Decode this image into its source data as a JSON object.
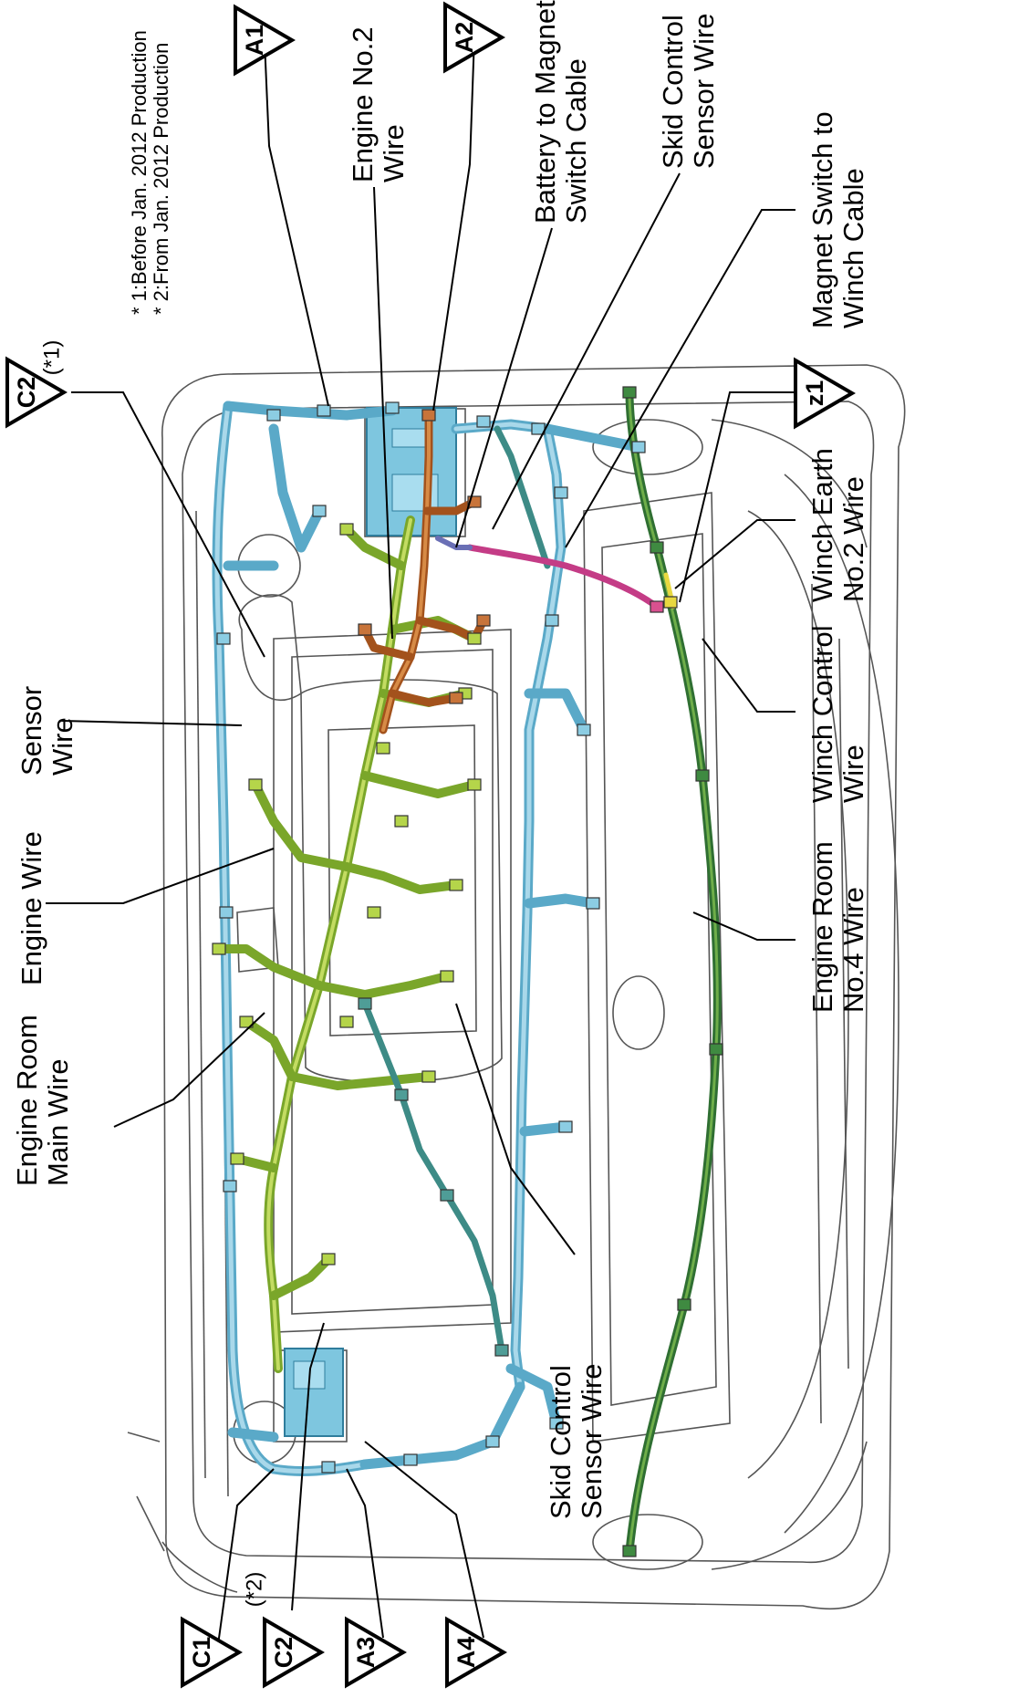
{
  "notes": {
    "line1": "* 1:Before Jan. 2012 Production",
    "line2": "* 2:From Jan. 2012 Production"
  },
  "markers": {
    "a1": "A1",
    "a2": "A2",
    "a3": "A3",
    "a4": "A4",
    "c1": "C1",
    "c2_top": "C2",
    "c2_bottom": "C2",
    "z1": "z1",
    "c2_top_note": "(*1)",
    "c2_bottom_note": "(*2)"
  },
  "labels": {
    "engine_no2_wire": [
      "Engine No.2",
      "Wire"
    ],
    "battery_to_magnet_switch_cable": [
      "Battery to Magnet",
      "Switch Cable"
    ],
    "skid_control_sensor_wire_top": [
      "Skid Control",
      "Sensor Wire"
    ],
    "magnet_switch_to_winch_cable": [
      "Magnet Switch to",
      "Winch Cable"
    ],
    "winch_earth_no2_wire": [
      "Winch Earth",
      "No.2 Wire"
    ],
    "winch_control_wire": [
      "Winch Control",
      "Wire"
    ],
    "engine_room_no4_wire": [
      "Engine Room",
      "No.4 Wire"
    ],
    "sensor_wire": [
      "Sensor",
      "Wire"
    ],
    "engine_wire": [
      "Engine Wire"
    ],
    "engine_room_main_wire": [
      "Engine Room",
      "Main Wire"
    ],
    "skid_control_sensor_wire_bottom": [
      "Skid Control",
      "Sensor Wire"
    ]
  },
  "colors": {
    "engine_room_main_wire": "#5aa9c8",
    "engine_wire": "#7aa62a",
    "engine_no2_wire": "#a3521c",
    "skid_control_sensor_wire": "#3d8b86",
    "engine_room_no4_wire": "#2f6f32",
    "magnet_switch_to_winch_cable": "#c43c86",
    "battery_to_magnet_switch_cable": "#6a6fb5",
    "winch_earth_no2_wire": "#e8d840"
  }
}
